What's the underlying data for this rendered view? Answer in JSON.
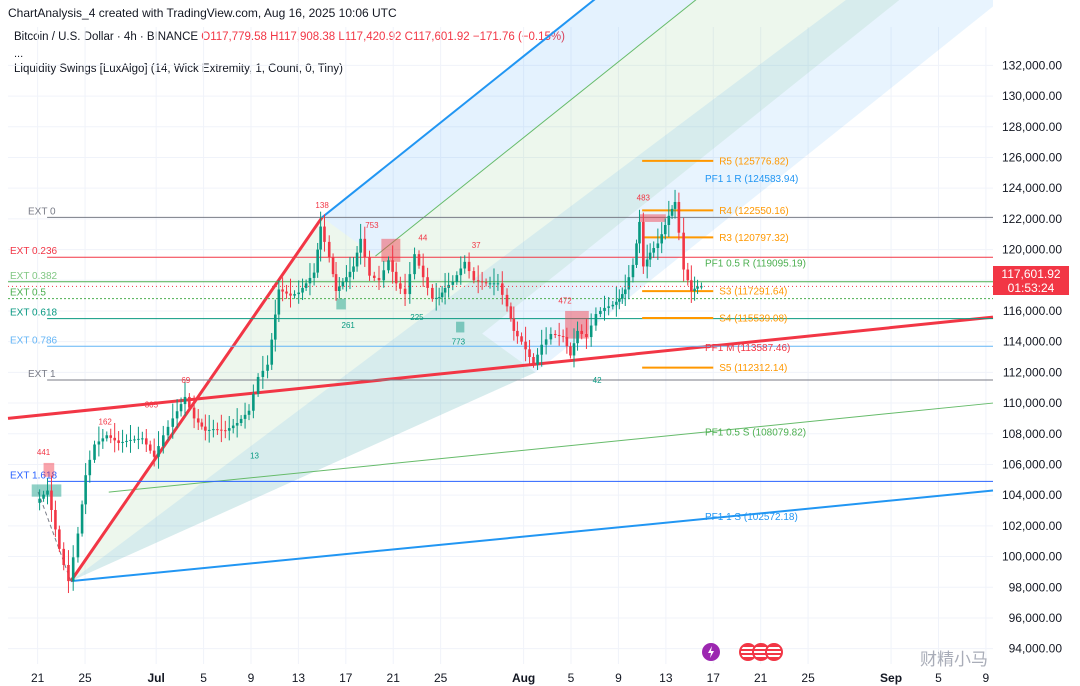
{
  "header": {
    "title": "ChartAnalysis_4 created with TradingView.com, Aug 16, 2025 10:06 UTC"
  },
  "legend": {
    "symbol": "Bitcoin / U.S. Dollar · 4h · BINANCE",
    "open": "O117,779.58",
    "high": "H117,908.38",
    "low": "L117,420.92",
    "close": "C117,601.92",
    "change": "−171.76 (−0.15%)",
    "dots": "...",
    "indicator": "Liquidity Swings [LuxAlgo] (14, Wick Extremity, 1, Count, 0, Tiny)"
  },
  "price_tag": {
    "price": "117,601.92",
    "countdown": "01:53:24"
  },
  "watermark": "财精小马",
  "events": [
    {
      "icon": "lightning-icon",
      "color": "#9c27b0"
    },
    {
      "icon": "us-flag-icon",
      "color": "#f23645"
    },
    {
      "icon": "us-flag-icon",
      "color": "#f23645"
    },
    {
      "icon": "us-flag-icon",
      "color": "#f23645"
    }
  ],
  "chart_data": {
    "type": "candlestick",
    "title": "",
    "y_axis": {
      "ticks": [
        94000,
        96000,
        98000,
        100000,
        102000,
        104000,
        106000,
        108000,
        110000,
        112000,
        114000,
        116000,
        118000,
        120000,
        122000,
        124000,
        126000,
        128000,
        130000,
        132000
      ],
      "tick_labels": [
        "94,000.00",
        "96,000.00",
        "98,000.00",
        "100,000.00",
        "102,000.00",
        "104,000.00",
        "106,000.00",
        "108,000.00",
        "110,000.00",
        "112,000.00",
        "114,000.00",
        "116,000.00",
        "118,000.00",
        "120,000.00",
        "122,000.00",
        "124,000.00",
        "126,000.00",
        "128,000.00",
        "130,000.00",
        "132,000.00"
      ],
      "range": [
        93000,
        134500
      ]
    },
    "x_axis": {
      "labels": [
        {
          "text": "21",
          "day": 20,
          "bold": false
        },
        {
          "text": "25",
          "day": 24,
          "bold": false
        },
        {
          "text": "Jul",
          "day": 30,
          "bold": true
        },
        {
          "text": "5",
          "day": 34,
          "bold": false
        },
        {
          "text": "9",
          "day": 38,
          "bold": false
        },
        {
          "text": "13",
          "day": 42,
          "bold": false
        },
        {
          "text": "17",
          "day": 46,
          "bold": false
        },
        {
          "text": "21",
          "day": 50,
          "bold": false
        },
        {
          "text": "25",
          "day": 54,
          "bold": false
        },
        {
          "text": "Aug",
          "day": 61,
          "bold": true
        },
        {
          "text": "5",
          "day": 65,
          "bold": false
        },
        {
          "text": "9",
          "day": 69,
          "bold": false
        },
        {
          "text": "13",
          "day": 73,
          "bold": false
        },
        {
          "text": "17",
          "day": 77,
          "bold": false
        },
        {
          "text": "21",
          "day": 81,
          "bold": false
        },
        {
          "text": "25",
          "day": 85,
          "bold": false
        },
        {
          "text": "Sep",
          "day": 92,
          "bold": true
        },
        {
          "text": "5",
          "day": 96,
          "bold": false
        },
        {
          "text": "9",
          "day": 100,
          "bold": false
        }
      ],
      "range": [
        17.5,
        100.6
      ]
    },
    "ext_levels": [
      {
        "label": "EXT 0",
        "price": 122100,
        "color": "#787b86",
        "label_color": "#787b86"
      },
      {
        "label": "EXT 0.236",
        "price": 119500,
        "color": "#f23645",
        "label_color": "#f23645"
      },
      {
        "label": "EXT 0.382",
        "price": 117900,
        "color": "#4caf50",
        "label_color": "#81c784"
      },
      {
        "label": "EXT 0.5",
        "price": 116800,
        "color": "#4caf50",
        "label_color": "#4caf50"
      },
      {
        "label": "EXT 0.618",
        "price": 115500,
        "color": "#089981",
        "label_color": "#089981"
      },
      {
        "label": "EXT 0.786",
        "price": 113700,
        "color": "#64b5f6",
        "label_color": "#64b5f6"
      },
      {
        "label": "EXT 1",
        "price": 111500,
        "color": "#787b86",
        "label_color": "#787b86"
      },
      {
        "label": "EXT 1.618",
        "price": 104900,
        "color": "#2962ff",
        "label_color": "#2962ff"
      }
    ],
    "channel_lines": [
      {
        "label": "PF1 1 R (124583.94)",
        "color": "#2196f3"
      },
      {
        "label": "PF1 0.5 R (119095.19)",
        "color": "#4caf50"
      },
      {
        "label": "PF1 M (113587.46)",
        "color": "#f23645"
      },
      {
        "label": "PF1 0.5 S (108079.82)",
        "color": "#4caf50"
      },
      {
        "label": "PF1 1 S (102572.18)",
        "color": "#2196f3"
      }
    ],
    "pivot_levels": [
      {
        "label": "R5 (125776.82)",
        "price": 125776.82
      },
      {
        "label": "R4 (122550.16)",
        "price": 122550.16
      },
      {
        "label": "R3 (120797.32)",
        "price": 120797.32
      },
      {
        "label": "S3 (117291.64)",
        "price": 117291.64
      },
      {
        "label": "S4 (115539.08)",
        "price": 115539.08
      },
      {
        "label": "S5 (112312.14)",
        "price": 112312.14
      }
    ],
    "swing_counts": [
      "441",
      "162",
      "305",
      "69",
      "13",
      "138",
      "753",
      "44",
      "37",
      "261",
      "225",
      "773",
      "472",
      "42",
      "483"
    ],
    "price_path": [
      [
        20,
        103500
      ],
      [
        21,
        104300
      ],
      [
        22,
        100500
      ],
      [
        22.8,
        98400
      ],
      [
        23.6,
        101500
      ],
      [
        24.2,
        105300
      ],
      [
        25,
        107300
      ],
      [
        26,
        107900
      ],
      [
        27,
        107400
      ],
      [
        28,
        107600
      ],
      [
        29,
        107700
      ],
      [
        30,
        106500
      ],
      [
        30.8,
        107900
      ],
      [
        31.6,
        109000
      ],
      [
        32.6,
        110400
      ],
      [
        33.4,
        109000
      ],
      [
        34.3,
        108200
      ],
      [
        35,
        108300
      ],
      [
        36,
        108200
      ],
      [
        37,
        108700
      ],
      [
        38,
        109500
      ],
      [
        38.8,
        111700
      ],
      [
        39.6,
        112500
      ],
      [
        40.5,
        117400
      ],
      [
        41.5,
        117000
      ],
      [
        42.2,
        117200
      ],
      [
        42.8,
        117800
      ],
      [
        43.5,
        118500
      ],
      [
        44,
        121500
      ],
      [
        44.8,
        119500
      ],
      [
        45.3,
        117300
      ],
      [
        46.2,
        118200
      ],
      [
        46.8,
        118900
      ],
      [
        47.4,
        120700
      ],
      [
        48.2,
        118300
      ],
      [
        49,
        118000
      ],
      [
        49.8,
        119300
      ],
      [
        50.4,
        117800
      ],
      [
        51.2,
        117100
      ],
      [
        52,
        119700
      ],
      [
        52.7,
        118200
      ],
      [
        53.5,
        116800
      ],
      [
        54,
        116900
      ],
      [
        54.5,
        117500
      ],
      [
        55.2,
        117900
      ],
      [
        56.2,
        119200
      ],
      [
        57,
        118000
      ],
      [
        58,
        117800
      ],
      [
        59,
        117800
      ],
      [
        59.8,
        116300
      ],
      [
        60.3,
        114700
      ],
      [
        61,
        114000
      ],
      [
        62,
        112500
      ],
      [
        62.7,
        113800
      ],
      [
        63.5,
        114500
      ],
      [
        64.5,
        114300
      ],
      [
        65.1,
        113100
      ],
      [
        65.7,
        114700
      ],
      [
        66.5,
        114300
      ],
      [
        67.3,
        115800
      ],
      [
        68,
        116200
      ],
      [
        68.7,
        116400
      ],
      [
        69.2,
        116800
      ],
      [
        69.7,
        117400
      ],
      [
        70.4,
        119000
      ],
      [
        70.9,
        121800
      ],
      [
        71.3,
        118900
      ],
      [
        71.8,
        119800
      ],
      [
        72.5,
        120400
      ],
      [
        73.4,
        122200
      ],
      [
        73.9,
        123100
      ],
      [
        74.3,
        121100
      ],
      [
        74.7,
        118700
      ],
      [
        75.3,
        117300
      ],
      [
        75.8,
        117600
      ],
      [
        76.2,
        117601.92
      ]
    ]
  }
}
